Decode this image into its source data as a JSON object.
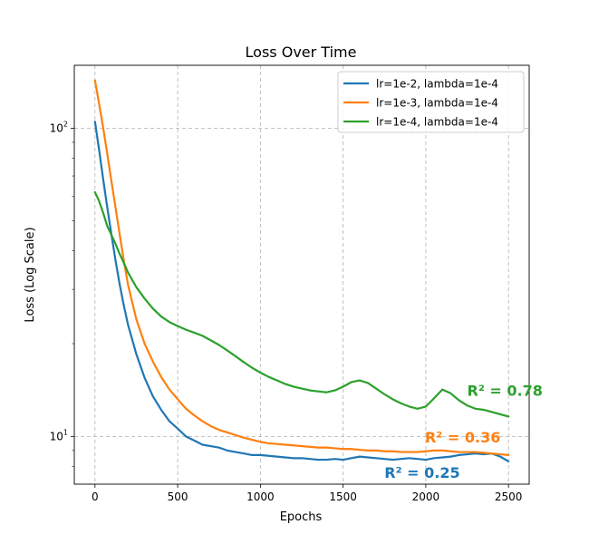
{
  "chart_data": {
    "type": "line",
    "title": "Loss Over Time",
    "xlabel": "Epochs",
    "ylabel": "Loss (Log Scale)",
    "xscale": "linear",
    "yscale": "log",
    "xlim": [
      -125,
      2625
    ],
    "ylim": [
      7.0,
      160
    ],
    "xticks": [
      0,
      500,
      1000,
      1500,
      2000,
      2500
    ],
    "xtick_labels": [
      "0",
      "500",
      "1000",
      "1500",
      "2000",
      "2500"
    ],
    "yticks": [
      10,
      100
    ],
    "ytick_labels": [
      "10^1",
      "10^2"
    ],
    "grid": true,
    "grid_style": "dashed",
    "legend_position": "top-right",
    "series": [
      {
        "name": "lr=1e-2, lambda=1e-4",
        "color": "#1f77b4",
        "x": [
          0,
          25,
          50,
          75,
          100,
          125,
          150,
          175,
          200,
          250,
          300,
          350,
          400,
          450,
          500,
          550,
          600,
          650,
          700,
          750,
          800,
          850,
          900,
          950,
          1000,
          1050,
          1100,
          1150,
          1200,
          1250,
          1300,
          1350,
          1400,
          1450,
          1500,
          1550,
          1600,
          1650,
          1700,
          1750,
          1800,
          1850,
          1900,
          1950,
          2000,
          2050,
          2100,
          2150,
          2200,
          2250,
          2300,
          2350,
          2400,
          2450,
          2500
        ],
        "y": [
          105,
          85,
          68,
          55,
          45,
          37,
          31,
          26.5,
          23,
          18.5,
          15.5,
          13.5,
          12.2,
          11.2,
          10.6,
          10.0,
          9.7,
          9.4,
          9.3,
          9.2,
          9.0,
          8.9,
          8.8,
          8.7,
          8.7,
          8.65,
          8.6,
          8.55,
          8.5,
          8.5,
          8.45,
          8.4,
          8.4,
          8.45,
          8.4,
          8.5,
          8.6,
          8.55,
          8.5,
          8.45,
          8.4,
          8.45,
          8.5,
          8.45,
          8.4,
          8.5,
          8.55,
          8.6,
          8.7,
          8.75,
          8.8,
          8.75,
          8.8,
          8.6,
          8.3
        ],
        "r2_label": "R² = 0.25",
        "r2_anchor": [
          1750,
          7.6
        ]
      },
      {
        "name": "lr=1e-3, lambda=1e-4",
        "color": "#ff7f0e",
        "x": [
          0,
          25,
          50,
          75,
          100,
          125,
          150,
          175,
          200,
          250,
          300,
          350,
          400,
          450,
          500,
          550,
          600,
          650,
          700,
          750,
          800,
          850,
          900,
          950,
          1000,
          1050,
          1100,
          1150,
          1200,
          1250,
          1300,
          1350,
          1400,
          1450,
          1500,
          1550,
          1600,
          1650,
          1700,
          1750,
          1800,
          1850,
          1900,
          1950,
          2000,
          2050,
          2100,
          2150,
          2200,
          2250,
          2300,
          2350,
          2400,
          2450,
          2500
        ],
        "y": [
          143,
          120,
          100,
          82,
          67,
          55,
          45,
          37,
          31,
          24,
          20,
          17.5,
          15.6,
          14.2,
          13.2,
          12.3,
          11.7,
          11.2,
          10.8,
          10.5,
          10.3,
          10.1,
          9.9,
          9.75,
          9.6,
          9.5,
          9.45,
          9.4,
          9.35,
          9.3,
          9.25,
          9.2,
          9.2,
          9.15,
          9.1,
          9.1,
          9.05,
          9.0,
          9.0,
          8.95,
          8.95,
          8.9,
          8.9,
          8.9,
          8.95,
          9.0,
          9.0,
          8.95,
          8.9,
          8.9,
          8.9,
          8.85,
          8.8,
          8.75,
          8.7
        ],
        "r2_label": "R² = 0.36",
        "r2_anchor": [
          1995,
          9.9
        ]
      },
      {
        "name": "lr=1e-4, lambda=1e-4",
        "color": "#2ca02c",
        "x": [
          0,
          25,
          50,
          75,
          100,
          125,
          150,
          175,
          200,
          250,
          300,
          350,
          400,
          450,
          500,
          550,
          600,
          650,
          700,
          750,
          800,
          850,
          900,
          950,
          1000,
          1050,
          1100,
          1150,
          1200,
          1250,
          1300,
          1350,
          1400,
          1450,
          1500,
          1550,
          1600,
          1650,
          1700,
          1750,
          1800,
          1850,
          1900,
          1950,
          2000,
          2050,
          2100,
          2150,
          2200,
          2250,
          2300,
          2350,
          2400,
          2450,
          2500
        ],
        "y": [
          62,
          58,
          53,
          48,
          45,
          42,
          39,
          36.5,
          34,
          30.5,
          28,
          26,
          24.5,
          23.5,
          22.8,
          22.2,
          21.7,
          21.2,
          20.5,
          19.8,
          19.0,
          18.2,
          17.4,
          16.7,
          16.1,
          15.6,
          15.2,
          14.8,
          14.5,
          14.3,
          14.1,
          14.0,
          13.9,
          14.1,
          14.5,
          15.0,
          15.2,
          14.9,
          14.3,
          13.7,
          13.2,
          12.8,
          12.5,
          12.3,
          12.5,
          13.3,
          14.2,
          13.8,
          13.1,
          12.6,
          12.3,
          12.2,
          12.0,
          11.8,
          11.6
        ],
        "r2_label": "R² = 0.78",
        "r2_anchor": [
          2250,
          14.0
        ]
      }
    ]
  }
}
